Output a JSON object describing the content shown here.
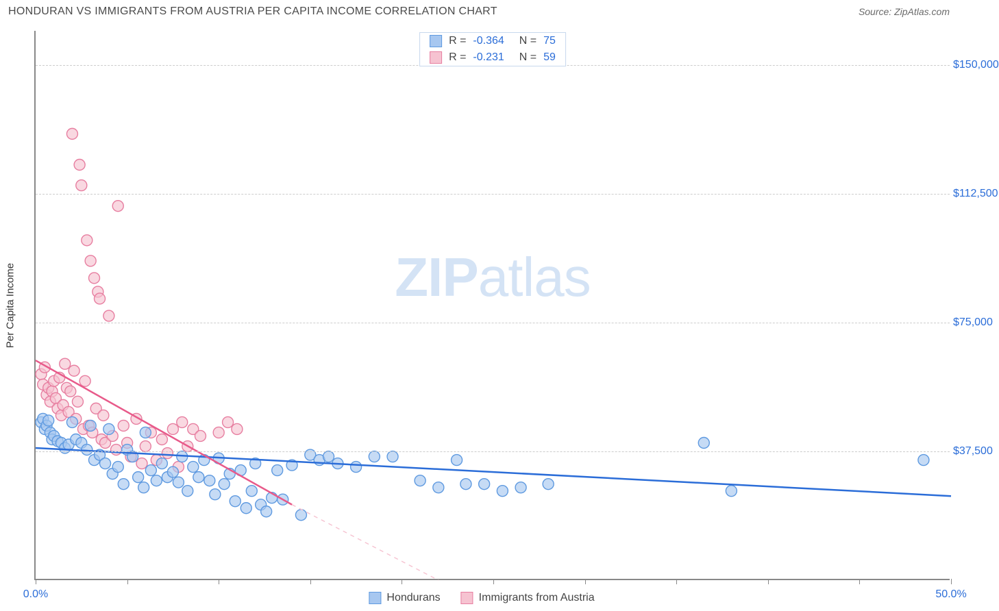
{
  "title": "HONDURAN VS IMMIGRANTS FROM AUSTRIA PER CAPITA INCOME CORRELATION CHART",
  "source": "Source: ZipAtlas.com",
  "watermark": {
    "bold": "ZIP",
    "light": "atlas"
  },
  "chart": {
    "type": "scatter",
    "y_axis_label": "Per Capita Income",
    "xlim": [
      0,
      50
    ],
    "ylim": [
      0,
      160000
    ],
    "x_ticks": [
      0,
      5,
      10,
      15,
      20,
      25,
      30,
      35,
      40,
      45,
      50
    ],
    "x_tick_labels_shown": {
      "0": "0.0%",
      "50": "50.0%"
    },
    "y_gridlines": [
      37500,
      75000,
      112500,
      150000
    ],
    "y_tick_labels": [
      "$37,500",
      "$75,000",
      "$112,500",
      "$150,000"
    ],
    "axis_color": "#888888",
    "grid_color": "#cccccc",
    "label_color_blue": "#2b6dd8",
    "background": "#ffffff",
    "marker_radius": 8,
    "marker_stroke_width": 1.4,
    "line_width": 2.5,
    "series": [
      {
        "name": "Hondurans",
        "color_fill": "#a7c7f0",
        "color_stroke": "#5f9ae0",
        "line_color": "#2b6dd8",
        "R": "-0.364",
        "N": "75",
        "regression": {
          "x1": 0,
          "y1": 38500,
          "x2": 50,
          "y2": 24500
        },
        "points": [
          [
            0.3,
            46000
          ],
          [
            0.4,
            47000
          ],
          [
            0.5,
            44000
          ],
          [
            0.6,
            45000
          ],
          [
            0.7,
            46500
          ],
          [
            0.8,
            43000
          ],
          [
            0.9,
            41000
          ],
          [
            1.0,
            42000
          ],
          [
            1.2,
            40500
          ],
          [
            1.4,
            40000
          ],
          [
            1.6,
            38500
          ],
          [
            1.8,
            39500
          ],
          [
            2.0,
            46000
          ],
          [
            2.2,
            41000
          ],
          [
            2.5,
            40000
          ],
          [
            2.8,
            38000
          ],
          [
            3.0,
            45000
          ],
          [
            3.2,
            35000
          ],
          [
            3.5,
            36500
          ],
          [
            3.8,
            34000
          ],
          [
            4.0,
            44000
          ],
          [
            4.2,
            31000
          ],
          [
            4.5,
            33000
          ],
          [
            4.8,
            28000
          ],
          [
            5.0,
            38000
          ],
          [
            5.3,
            36000
          ],
          [
            5.6,
            30000
          ],
          [
            5.9,
            27000
          ],
          [
            6.0,
            43000
          ],
          [
            6.3,
            32000
          ],
          [
            6.6,
            29000
          ],
          [
            6.9,
            34000
          ],
          [
            7.2,
            30000
          ],
          [
            7.5,
            31500
          ],
          [
            7.8,
            28500
          ],
          [
            8.0,
            36000
          ],
          [
            8.3,
            26000
          ],
          [
            8.6,
            33000
          ],
          [
            8.9,
            30000
          ],
          [
            9.2,
            35000
          ],
          [
            9.5,
            29000
          ],
          [
            9.8,
            25000
          ],
          [
            10.0,
            35500
          ],
          [
            10.3,
            28000
          ],
          [
            10.6,
            31000
          ],
          [
            10.9,
            23000
          ],
          [
            11.2,
            32000
          ],
          [
            11.5,
            21000
          ],
          [
            11.8,
            26000
          ],
          [
            12.0,
            34000
          ],
          [
            12.3,
            22000
          ],
          [
            12.6,
            20000
          ],
          [
            12.9,
            24000
          ],
          [
            13.2,
            32000
          ],
          [
            13.5,
            23500
          ],
          [
            14.0,
            33500
          ],
          [
            14.5,
            19000
          ],
          [
            15.0,
            36500
          ],
          [
            15.5,
            35000
          ],
          [
            16.0,
            36000
          ],
          [
            16.5,
            34000
          ],
          [
            17.5,
            33000
          ],
          [
            18.5,
            36000
          ],
          [
            19.5,
            36000
          ],
          [
            21.0,
            29000
          ],
          [
            22.0,
            27000
          ],
          [
            23.0,
            35000
          ],
          [
            23.5,
            28000
          ],
          [
            24.5,
            28000
          ],
          [
            25.5,
            26000
          ],
          [
            26.5,
            27000
          ],
          [
            28.0,
            28000
          ],
          [
            36.5,
            40000
          ],
          [
            38.0,
            26000
          ],
          [
            48.5,
            35000
          ]
        ]
      },
      {
        "name": "Immigrants from Austria",
        "color_fill": "#f6c3d1",
        "color_stroke": "#e77ea0",
        "line_color": "#e85a8a",
        "R": "-0.231",
        "N": "59",
        "regression": {
          "x1": 0,
          "y1": 64000,
          "x2": 14,
          "y2": 22000
        },
        "regression_dash": {
          "x1": 14,
          "y1": 22000,
          "x2": 22,
          "y2": 0
        },
        "points": [
          [
            0.3,
            60000
          ],
          [
            0.4,
            57000
          ],
          [
            0.5,
            62000
          ],
          [
            0.6,
            54000
          ],
          [
            0.7,
            56000
          ],
          [
            0.8,
            52000
          ],
          [
            0.9,
            55000
          ],
          [
            1.0,
            58000
          ],
          [
            1.1,
            53000
          ],
          [
            1.2,
            50000
          ],
          [
            1.3,
            59000
          ],
          [
            1.4,
            48000
          ],
          [
            1.5,
            51000
          ],
          [
            1.6,
            63000
          ],
          [
            1.7,
            56000
          ],
          [
            1.8,
            49000
          ],
          [
            1.9,
            55000
          ],
          [
            2.0,
            130000
          ],
          [
            2.1,
            61000
          ],
          [
            2.2,
            47000
          ],
          [
            2.3,
            52000
          ],
          [
            2.4,
            121000
          ],
          [
            2.5,
            115000
          ],
          [
            2.6,
            44000
          ],
          [
            2.7,
            58000
          ],
          [
            2.8,
            99000
          ],
          [
            2.9,
            45000
          ],
          [
            3.0,
            93000
          ],
          [
            3.1,
            43000
          ],
          [
            3.2,
            88000
          ],
          [
            3.3,
            50000
          ],
          [
            3.4,
            84000
          ],
          [
            3.5,
            82000
          ],
          [
            3.6,
            41000
          ],
          [
            3.7,
            48000
          ],
          [
            3.8,
            40000
          ],
          [
            4.0,
            77000
          ],
          [
            4.2,
            42000
          ],
          [
            4.4,
            38000
          ],
          [
            4.5,
            109000
          ],
          [
            4.8,
            45000
          ],
          [
            5.0,
            40000
          ],
          [
            5.2,
            36000
          ],
          [
            5.5,
            47000
          ],
          [
            5.8,
            34000
          ],
          [
            6.0,
            39000
          ],
          [
            6.3,
            43000
          ],
          [
            6.6,
            35000
          ],
          [
            6.9,
            41000
          ],
          [
            7.2,
            37000
          ],
          [
            7.5,
            44000
          ],
          [
            7.8,
            33000
          ],
          [
            8.0,
            46000
          ],
          [
            8.3,
            39000
          ],
          [
            8.6,
            44000
          ],
          [
            9.0,
            42000
          ],
          [
            10.0,
            43000
          ],
          [
            10.5,
            46000
          ],
          [
            11.0,
            44000
          ]
        ]
      }
    ]
  },
  "legend": {
    "items": [
      {
        "label": "Hondurans",
        "fill": "#a7c7f0",
        "stroke": "#5f9ae0"
      },
      {
        "label": "Immigrants from Austria",
        "fill": "#f6c3d1",
        "stroke": "#e77ea0"
      }
    ]
  }
}
